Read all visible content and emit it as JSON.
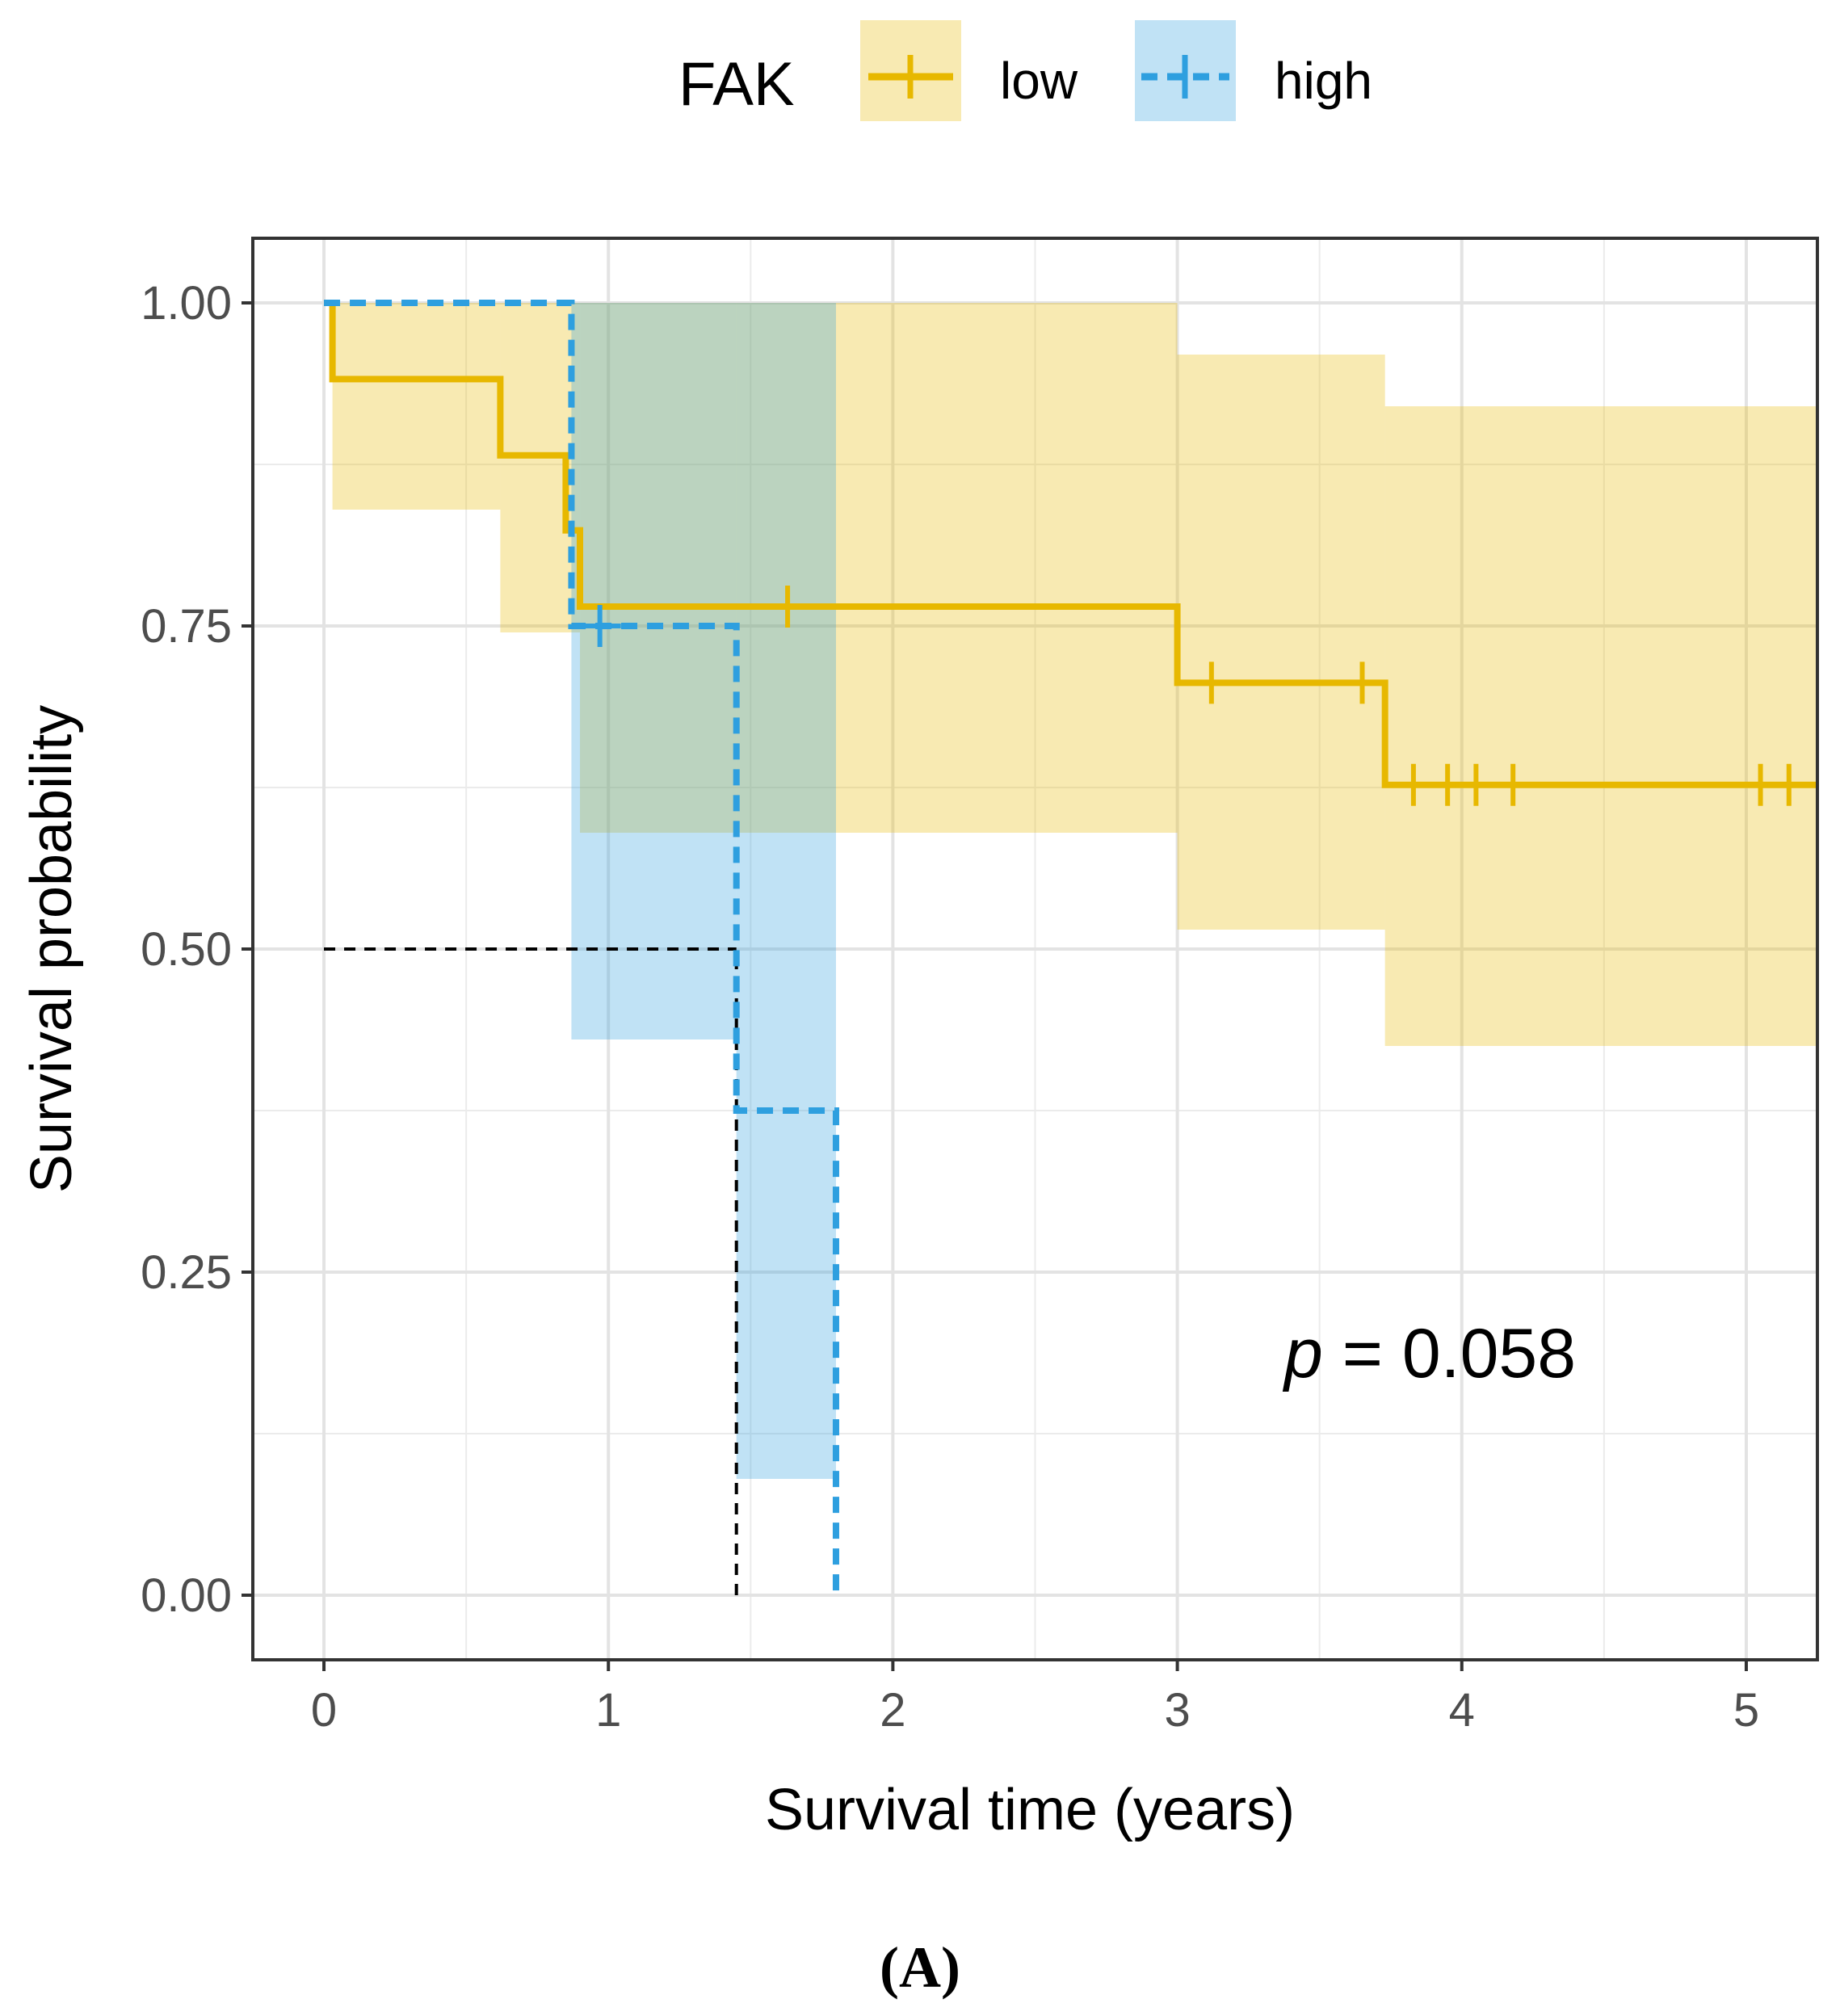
{
  "chart_data": {
    "type": "line",
    "subtype": "kaplan-meier",
    "title": "",
    "xlabel": "Survival time (years)",
    "ylabel": "Survival probability",
    "xlim": [
      -0.25,
      5.25
    ],
    "ylim": [
      -0.05,
      1.05
    ],
    "x_ticks": [
      0,
      1,
      2,
      3,
      4,
      5
    ],
    "x_tick_labels": [
      "0",
      "1",
      "2",
      "3",
      "4",
      "5"
    ],
    "y_ticks": [
      0,
      0.25,
      0.5,
      0.75,
      1.0
    ],
    "y_tick_labels": [
      "0.00",
      "0.25",
      "0.50",
      "0.75",
      "1.00"
    ],
    "grid": true,
    "legend": {
      "title": "FAK",
      "position": "top",
      "entries": [
        {
          "label": "low",
          "series": "low"
        },
        {
          "label": "high",
          "series": "high"
        }
      ]
    },
    "series": [
      {
        "name": "low",
        "color": "#E7B800",
        "line_style": "solid",
        "steps": [
          [
            0,
            1.0
          ],
          [
            0.03,
            0.941
          ],
          [
            0.62,
            0.882
          ],
          [
            0.85,
            0.824
          ],
          [
            0.9,
            0.765
          ],
          [
            3.0,
            0.706
          ],
          [
            3.73,
            0.627
          ]
        ],
        "end_x": 5.25,
        "censor_x": [
          1.63,
          3.12,
          3.65,
          3.83,
          3.95,
          4.05,
          4.18,
          5.05,
          5.15
        ],
        "ci_band": [
          [
            0.03,
            0.84,
            1.0
          ],
          [
            0.62,
            0.745,
            1.0
          ],
          [
            0.9,
            0.59,
            1.0
          ],
          [
            3.0,
            0.515,
            0.96
          ],
          [
            3.73,
            0.425,
            0.92
          ]
        ],
        "ci_end_x": 5.25
      },
      {
        "name": "high",
        "color": "#2E9FDF",
        "line_style": "dashed",
        "steps": [
          [
            0,
            1.0
          ],
          [
            0.87,
            0.75
          ],
          [
            1.45,
            0.375
          ],
          [
            1.8,
            0.0
          ]
        ],
        "end_x": 1.8,
        "censor_x": [
          0.97
        ],
        "ci_band": [
          [
            0.87,
            0.43,
            1.0
          ],
          [
            1.45,
            0.09,
            1.0
          ]
        ],
        "ci_end_x": 1.8
      }
    ],
    "median_lines": [
      {
        "y": 0.5,
        "x_start": 0,
        "x_end": 1.45
      },
      {
        "x": 1.45,
        "y_start": 0,
        "y_end": 0.5
      }
    ],
    "annotations": [
      {
        "text_prefix": "p",
        "text_value": " = 0.058",
        "x": 3.4,
        "y": 0.18
      }
    ]
  },
  "panel_label": "(A)"
}
